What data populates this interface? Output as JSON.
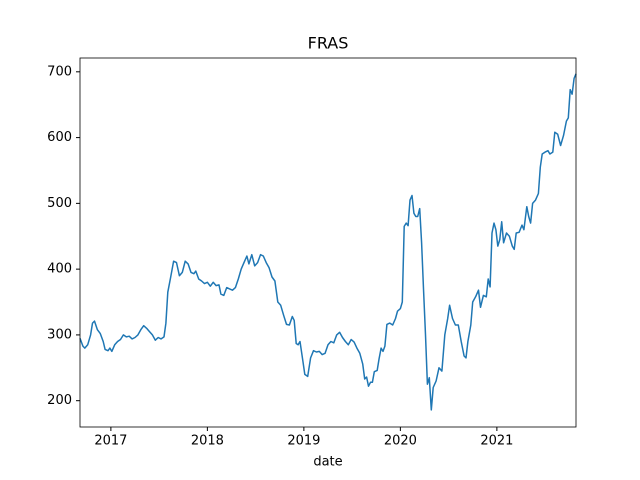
{
  "chart_data": {
    "type": "line",
    "title": "FRAS",
    "x_label": "date",
    "x": [
      2016.68,
      2016.71,
      2016.73,
      2016.76,
      2016.79,
      2016.81,
      2016.83,
      2016.86,
      2016.89,
      2016.92,
      2016.94,
      2016.97,
      2016.99,
      2017.01,
      2017.04,
      2017.07,
      2017.1,
      2017.13,
      2017.16,
      2017.19,
      2017.22,
      2017.25,
      2017.28,
      2017.31,
      2017.34,
      2017.37,
      2017.4,
      2017.43,
      2017.46,
      2017.49,
      2017.52,
      2017.55,
      2017.57,
      2017.59,
      2017.62,
      2017.65,
      2017.68,
      2017.71,
      2017.74,
      2017.77,
      2017.8,
      2017.83,
      2017.86,
      2017.88,
      2017.91,
      2017.94,
      2017.97,
      2018.0,
      2018.03,
      2018.06,
      2018.09,
      2018.12,
      2018.14,
      2018.17,
      2018.2,
      2018.23,
      2018.26,
      2018.29,
      2018.32,
      2018.35,
      2018.38,
      2018.41,
      2018.43,
      2018.46,
      2018.49,
      2018.52,
      2018.55,
      2018.58,
      2018.61,
      2018.64,
      2018.67,
      2018.7,
      2018.73,
      2018.76,
      2018.79,
      2018.82,
      2018.85,
      2018.88,
      2018.9,
      2018.92,
      2018.94,
      2018.96,
      2018.99,
      2019.01,
      2019.04,
      2019.07,
      2019.1,
      2019.13,
      2019.16,
      2019.19,
      2019.22,
      2019.25,
      2019.28,
      2019.31,
      2019.34,
      2019.37,
      2019.4,
      2019.43,
      2019.46,
      2019.49,
      2019.52,
      2019.55,
      2019.58,
      2019.61,
      2019.63,
      2019.65,
      2019.67,
      2019.69,
      2019.71,
      2019.73,
      2019.76,
      2019.78,
      2019.8,
      2019.82,
      2019.84,
      2019.86,
      2019.89,
      2019.92,
      2019.95,
      2019.97,
      2020.0,
      2020.02,
      2020.04,
      2020.06,
      2020.08,
      2020.1,
      2020.12,
      2020.14,
      2020.16,
      2020.18,
      2020.2,
      2020.22,
      2020.24,
      2020.26,
      2020.28,
      2020.3,
      2020.32,
      2020.34,
      2020.37,
      2020.4,
      2020.43,
      2020.46,
      2020.49,
      2020.51,
      2020.54,
      2020.57,
      2020.6,
      2020.63,
      2020.66,
      2020.68,
      2020.7,
      2020.73,
      2020.75,
      2020.78,
      2020.81,
      2020.83,
      2020.86,
      2020.89,
      2020.91,
      2020.93,
      2020.95,
      2020.97,
      2020.99,
      2021.01,
      2021.03,
      2021.05,
      2021.07,
      2021.1,
      2021.13,
      2021.16,
      2021.18,
      2021.2,
      2021.23,
      2021.26,
      2021.28,
      2021.31,
      2021.33,
      2021.35,
      2021.37,
      2021.4,
      2021.43,
      2021.45,
      2021.47,
      2021.5,
      2021.53,
      2021.55,
      2021.58,
      2021.6,
      2021.63,
      2021.66,
      2021.69,
      2021.72,
      2021.74,
      2021.76,
      2021.78,
      2021.8,
      2021.82
    ],
    "series": [
      {
        "name": "FRAS",
        "color": "#1f77b4",
        "values": [
          295,
          283,
          280,
          285,
          300,
          318,
          321,
          308,
          302,
          290,
          278,
          276,
          280,
          275,
          285,
          290,
          293,
          300,
          297,
          298,
          294,
          296,
          300,
          308,
          314,
          310,
          305,
          300,
          292,
          296,
          294,
          297,
          318,
          365,
          388,
          412,
          410,
          390,
          395,
          412,
          408,
          395,
          393,
          397,
          385,
          382,
          378,
          380,
          374,
          380,
          375,
          376,
          362,
          360,
          372,
          370,
          368,
          372,
          385,
          400,
          410,
          420,
          408,
          422,
          405,
          410,
          422,
          420,
          410,
          402,
          388,
          382,
          350,
          345,
          330,
          316,
          315,
          328,
          322,
          287,
          285,
          290,
          260,
          240,
          237,
          265,
          276,
          274,
          275,
          270,
          272,
          285,
          290,
          288,
          300,
          304,
          296,
          290,
          285,
          293,
          289,
          280,
          272,
          256,
          233,
          236,
          222,
          228,
          228,
          244,
          246,
          264,
          280,
          275,
          283,
          316,
          318,
          315,
          325,
          336,
          340,
          350,
          465,
          470,
          466,
          505,
          512,
          485,
          480,
          480,
          492,
          440,
          370,
          300,
          225,
          235,
          186,
          220,
          230,
          250,
          245,
          300,
          325,
          345,
          325,
          315,
          315,
          290,
          268,
          265,
          290,
          315,
          350,
          358,
          368,
          342,
          360,
          358,
          385,
          373,
          455,
          470,
          460,
          435,
          445,
          472,
          440,
          455,
          450,
          435,
          430,
          455,
          456,
          467,
          460,
          495,
          480,
          470,
          500,
          505,
          515,
          555,
          575,
          578,
          580,
          575,
          578,
          608,
          605,
          588,
          603,
          625,
          630,
          673,
          666,
          690,
          697
        ]
      }
    ],
    "xlim": [
      2016.68,
      2021.82
    ],
    "xticks": [
      2017,
      2018,
      2019,
      2020,
      2021
    ],
    "ylim": [
      160,
      721
    ],
    "yticks": [
      200,
      300,
      400,
      500,
      600,
      700
    ]
  }
}
